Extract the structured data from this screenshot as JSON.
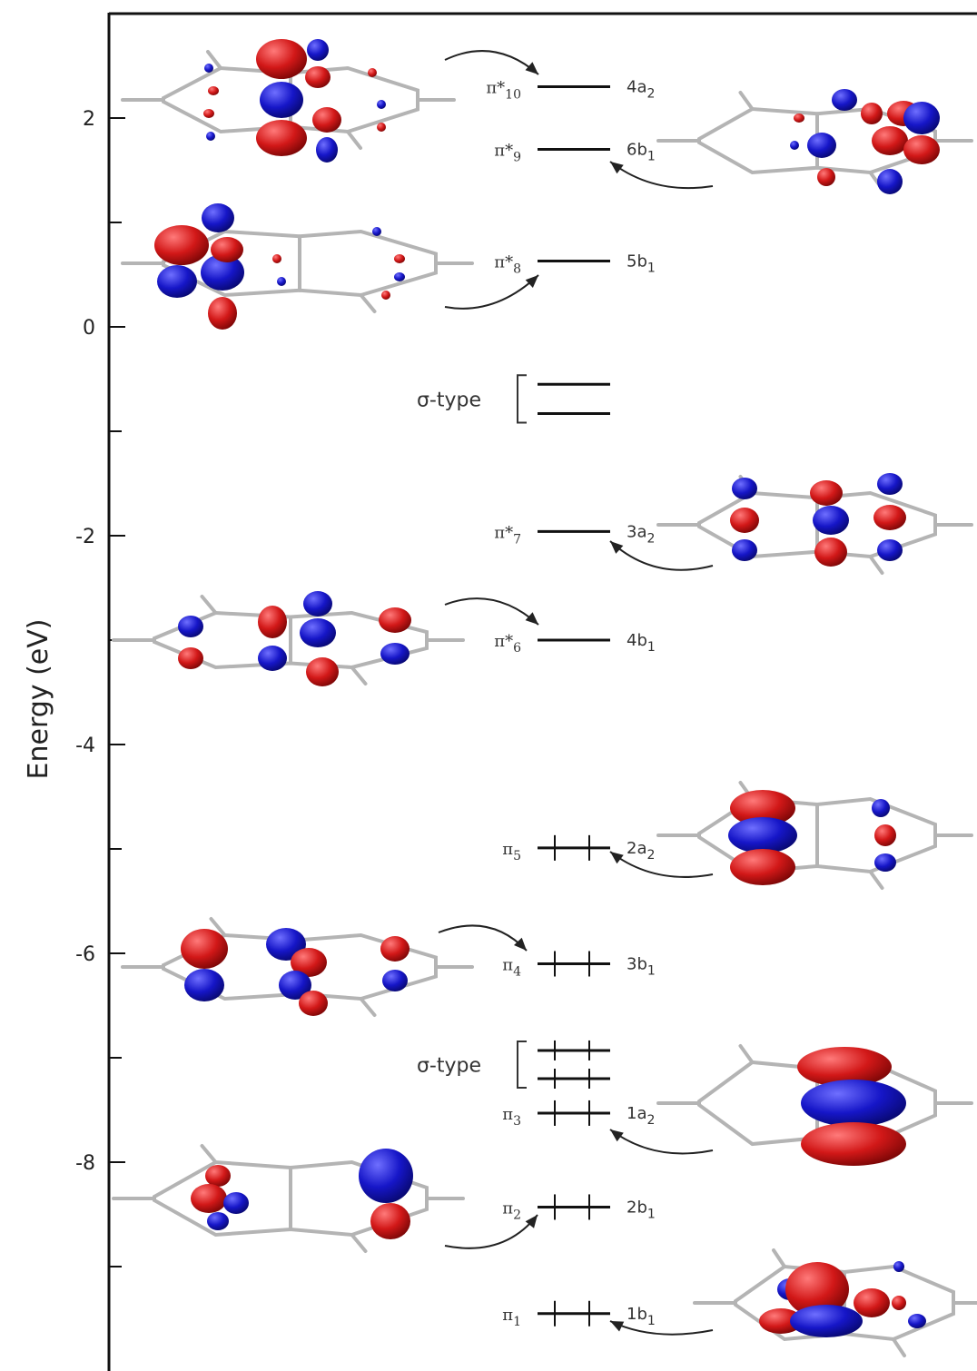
{
  "axis": {
    "ylabel": "Energy (eV)",
    "ylim": [
      -10.4,
      3.0
    ],
    "major_ticks": [
      2,
      0,
      -2,
      -4,
      -6,
      -8
    ],
    "major_labels": [
      "2",
      "0",
      "-2",
      "-4",
      "-6",
      "-8"
    ],
    "minor_ticks": [
      1,
      -1,
      -3,
      -5,
      -7,
      -9
    ]
  },
  "levels": [
    {
      "name": "π*10",
      "base": "π*",
      "sub": "10",
      "symmetry": "4a",
      "sym_sub": "2",
      "energy": 2.3,
      "occupied": false
    },
    {
      "name": "π*9",
      "base": "π*",
      "sub": "9",
      "symmetry": "6b",
      "sym_sub": "1",
      "energy": 1.7,
      "occupied": false
    },
    {
      "name": "π*8",
      "base": "π*",
      "sub": "8",
      "symmetry": "5b",
      "sym_sub": "1",
      "energy": 0.63,
      "occupied": false
    },
    {
      "name": "π*7",
      "base": "π*",
      "sub": "7",
      "symmetry": "3a",
      "sym_sub": "2",
      "energy": -1.96,
      "occupied": false
    },
    {
      "name": "π*6",
      "base": "π*",
      "sub": "6",
      "symmetry": "4b",
      "sym_sub": "1",
      "energy": -3.0,
      "occupied": false
    },
    {
      "name": "π5",
      "base": "π",
      "sub": "5",
      "symmetry": "2a",
      "sym_sub": "2",
      "energy": -4.99,
      "occupied": true
    },
    {
      "name": "π4",
      "base": "π",
      "sub": "4",
      "symmetry": "3b",
      "sym_sub": "1",
      "energy": -6.1,
      "occupied": true
    },
    {
      "name": "π3",
      "base": "π",
      "sub": "3",
      "symmetry": "1a",
      "sym_sub": "2",
      "energy": -7.53,
      "occupied": true
    },
    {
      "name": "π2",
      "base": "π",
      "sub": "2",
      "symmetry": "2b",
      "sym_sub": "1",
      "energy": -8.43,
      "occupied": true
    },
    {
      "name": "π1",
      "base": "π",
      "sub": "1",
      "symmetry": "1b",
      "sym_sub": "1",
      "energy": -9.45,
      "occupied": true
    }
  ],
  "sigma_groups": [
    {
      "label": "σ-type",
      "energies": [
        -0.55,
        -0.83
      ],
      "occupied": false
    },
    {
      "label": "σ-type",
      "energies": [
        -6.93,
        -7.2
      ],
      "occupied": true
    }
  ],
  "colors": {
    "positive_lobe": "#d21818",
    "negative_lobe": "#1616c8",
    "level_line": "#111111",
    "skeleton": "#b4b4b4"
  }
}
